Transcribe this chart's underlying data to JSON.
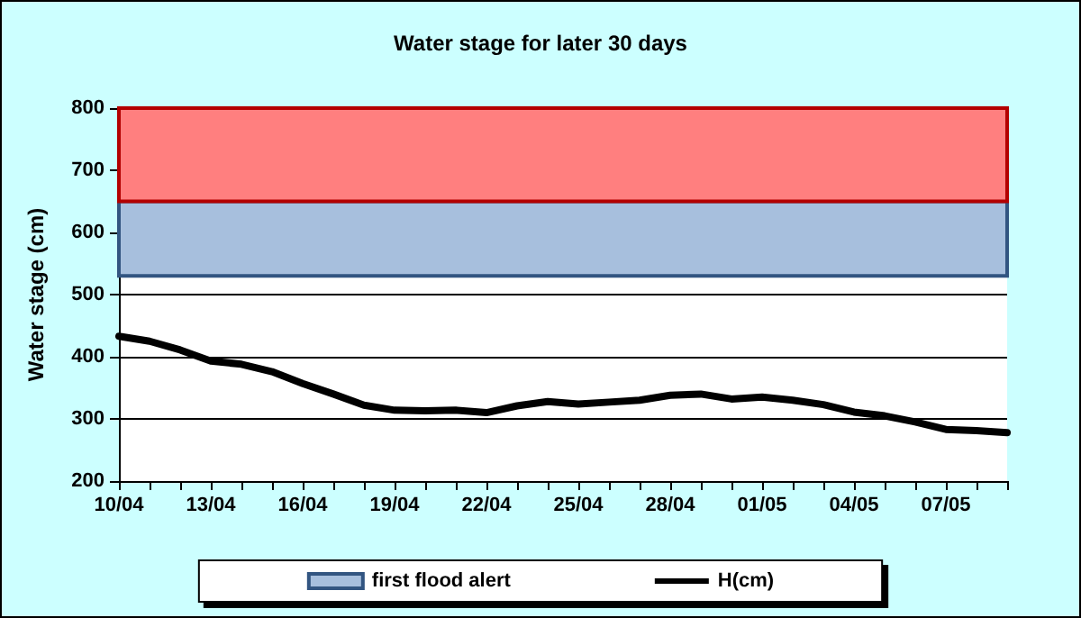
{
  "chart_data": {
    "type": "line",
    "title": "Water stage for later 30 days",
    "ylabel": "Water stage (cm)",
    "categories": [
      "10/04",
      null,
      null,
      "13/04",
      null,
      null,
      "16/04",
      null,
      null,
      "19/04",
      null,
      null,
      "22/04",
      null,
      null,
      "25/04",
      null,
      null,
      "28/04",
      null,
      null,
      "01/05",
      null,
      null,
      "04/05",
      null,
      null,
      "07/05",
      null,
      null
    ],
    "series": [
      {
        "name": "H(cm)",
        "color": "#000000",
        "values": [
          433,
          425,
          411,
          393,
          388,
          376,
          357,
          340,
          322,
          314,
          313,
          314,
          310,
          321,
          328,
          324,
          327,
          330,
          338,
          340,
          332,
          335,
          330,
          323,
          311,
          305,
          295,
          283,
          281,
          278
        ]
      }
    ],
    "ylim": [
      200,
      800
    ],
    "yticks": [
      200,
      300,
      400,
      500,
      600,
      700,
      800
    ],
    "grid": "y",
    "legend": "bottom",
    "marker": "none",
    "line_style": "solid",
    "bands": [
      {
        "axis": "y",
        "from": 530,
        "to": 650,
        "label": "first flood alert",
        "color": "#a7bfdd"
      },
      {
        "axis": "y",
        "from": 650,
        "to": 800,
        "label": null,
        "color": "#ff7f7f"
      }
    ]
  }
}
